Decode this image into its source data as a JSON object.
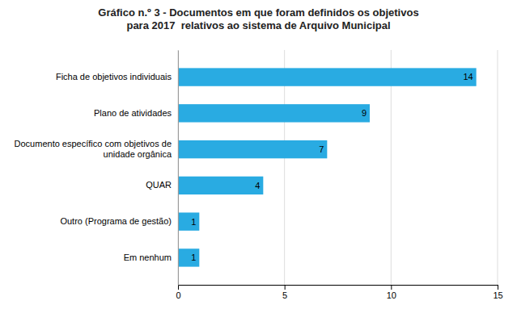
{
  "chart_data": {
    "type": "bar",
    "orientation": "horizontal",
    "title": "Gráfico n.º 3 - Documentos em que foram definidos os objetivos\npara 2017  relativos ao sistema de Arquivo Municipal",
    "categories": [
      "Em nenhum",
      "Outro (Programa de gestão)",
      "QUAR",
      "Documento específico com objetivos de\nunidade orgânica",
      "Plano de atividades",
      "Ficha de objetivos individuais"
    ],
    "values": [
      1,
      1,
      4,
      7,
      9,
      14
    ],
    "color": "#29ABE2",
    "xlim": [
      0,
      15
    ],
    "xticks": [
      0,
      5,
      10,
      15
    ],
    "grid": true,
    "data_labels": true
  }
}
